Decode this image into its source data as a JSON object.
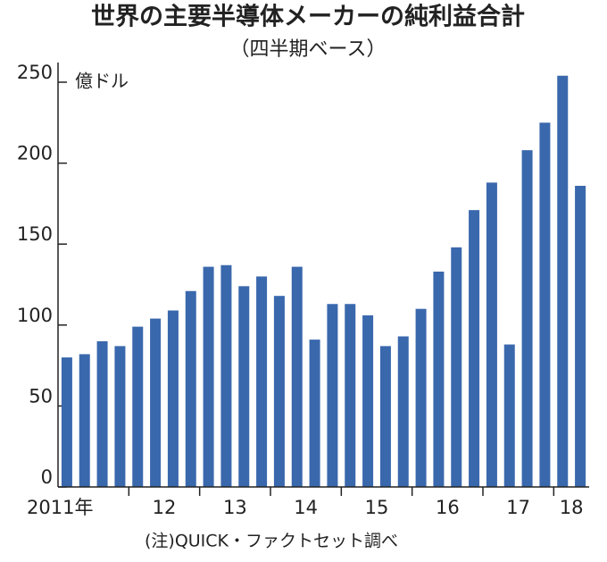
{
  "chart_data": {
    "type": "bar",
    "title": "世界の主要半導体メーカーの純利益合計",
    "subtitle": "（四半期ベース）",
    "unit_label": "億ドル",
    "note": "(注)QUICK・ファクトセット調べ",
    "categories": [
      "2011年",
      null,
      null,
      null,
      "12",
      null,
      null,
      null,
      "13",
      null,
      null,
      null,
      "14",
      null,
      null,
      null,
      "15",
      null,
      null,
      null,
      "16",
      null,
      null,
      null,
      "17",
      null,
      null,
      null,
      "18",
      null
    ],
    "values": [
      80,
      82,
      90,
      87,
      99,
      104,
      109,
      121,
      136,
      137,
      124,
      130,
      118,
      136,
      91,
      113,
      113,
      106,
      87,
      93,
      110,
      133,
      148,
      171,
      188,
      88,
      208,
      225,
      254,
      186
    ],
    "color": "#3a68ad",
    "ylim": [
      0,
      250
    ],
    "yticks": [
      0,
      50,
      100,
      150,
      200,
      250
    ]
  }
}
